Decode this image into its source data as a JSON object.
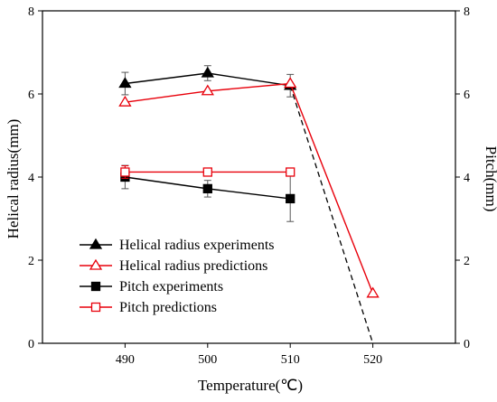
{
  "chart_data": {
    "type": "line",
    "xlabel": "Temperature(℃)",
    "ylabel_left": "Helical radius(mm)",
    "ylabel_right": "Pitch(mm)",
    "xlim": [
      480,
      530
    ],
    "ylim": [
      0,
      8
    ],
    "x_ticks": [
      490,
      500,
      510,
      520
    ],
    "y_ticks": [
      0,
      2,
      4,
      6,
      8
    ],
    "grid": false,
    "legend_position": "lower-left",
    "series": [
      {
        "name": "Helical radius experiments",
        "color": "#000000",
        "marker": "triangle-filled",
        "line": "solid",
        "axis": "left",
        "x": [
          490,
          500,
          510
        ],
        "y": [
          6.25,
          6.5,
          6.2
        ],
        "error": [
          0.27,
          0.18,
          0.27
        ]
      },
      {
        "name": "Helical radius predictions",
        "color": "#e8000b",
        "marker": "triangle-open",
        "line": "solid",
        "axis": "left",
        "x": [
          490,
          500,
          510,
          520
        ],
        "y": [
          5.8,
          6.07,
          6.25,
          1.2
        ]
      },
      {
        "name": "Pitch experiments",
        "color": "#000000",
        "marker": "square-filled",
        "line": "solid",
        "axis": "right",
        "x": [
          490,
          500,
          510
        ],
        "y": [
          4.0,
          3.72,
          3.48
        ],
        "error": [
          0.28,
          0.2,
          0.55
        ]
      },
      {
        "name": "Pitch predictions",
        "color": "#e8000b",
        "marker": "square-open",
        "line": "solid",
        "axis": "right",
        "x": [
          490,
          500,
          510
        ],
        "y": [
          4.12,
          4.12,
          4.12
        ],
        "error": [
          0.15,
          0.0,
          0.0
        ]
      }
    ],
    "extrapolation": {
      "color": "#000000",
      "line": "dashed",
      "x": [
        510,
        520
      ],
      "y": [
        6.2,
        0
      ]
    }
  }
}
